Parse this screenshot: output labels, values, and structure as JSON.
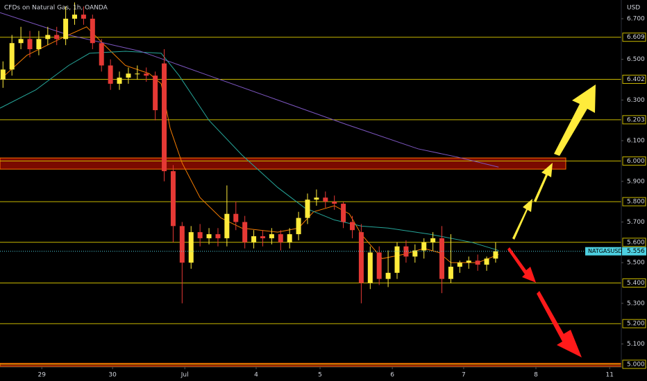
{
  "chart_data": {
    "type": "candlestick",
    "title": "CFDs on Natural Gas, 1h, OANDA",
    "currency": "USD",
    "symbol": "NATGASUSD",
    "last_price": 5.556,
    "up_color": "#ffeb3b",
    "down_color": "#e53935",
    "xlim": [
      0,
      208.1
    ],
    "ylim": [
      4.986,
      6.792
    ],
    "xticks": [
      {
        "value": 14,
        "label": "29"
      },
      {
        "value": 37.7,
        "label": "30"
      },
      {
        "value": 61.9,
        "label": "Jul"
      },
      {
        "value": 85.8,
        "label": "4"
      },
      {
        "value": 107.2,
        "label": "5"
      },
      {
        "value": 131.4,
        "label": "6"
      },
      {
        "value": 155.3,
        "label": "7"
      },
      {
        "value": 179.5,
        "label": "8"
      },
      {
        "value": 204.2,
        "label": "11"
      }
    ],
    "yticks": [
      {
        "value": 6.7,
        "label": "6.700"
      },
      {
        "value": 6.5,
        "label": "6.500"
      },
      {
        "value": 6.3,
        "label": "6.300"
      },
      {
        "value": 6.1,
        "label": "6.100"
      },
      {
        "value": 5.9,
        "label": "5.900"
      },
      {
        "value": 5.7,
        "label": "5.700"
      },
      {
        "value": 5.5,
        "label": "5.500"
      },
      {
        "value": 5.3,
        "label": "5.300"
      },
      {
        "value": 5.1,
        "label": "5.100"
      }
    ],
    "levels": [
      6.609,
      6.402,
      6.203,
      {
        "value": 6.0,
        "label": "6.000"
      },
      {
        "value": 5.8,
        "label": "5.800"
      },
      {
        "value": 5.6,
        "label": "5.600"
      },
      {
        "value": 5.4,
        "label": "5.400"
      },
      {
        "value": 5.2,
        "label": "5.200"
      },
      {
        "value": 5.0,
        "label": "5.000"
      }
    ],
    "level_color": "#c9b800",
    "zones": [
      {
        "low": 5.96,
        "high": 6.015,
        "x_end": 189.5,
        "color": "#7a0a00",
        "border": "#ff6d00"
      },
      {
        "low": 4.99,
        "high": 5.005,
        "x_end": 208.1,
        "color": "#7a0a00",
        "border": "#ff6d00"
      }
    ],
    "candles": {
      "x": [
        1,
        4,
        7,
        10,
        13,
        16,
        19,
        22,
        25,
        28,
        31,
        34,
        37,
        40,
        43,
        46,
        49,
        52,
        55,
        58,
        61,
        64,
        67,
        70,
        73,
        76,
        79,
        82,
        85,
        88,
        91,
        94,
        97,
        100,
        103,
        106,
        109,
        112,
        115,
        118,
        121,
        124,
        127,
        130,
        133,
        136,
        139,
        142,
        145,
        148,
        151,
        154,
        157,
        160,
        163,
        166
      ],
      "open": [
        6.4,
        6.45,
        6.58,
        6.6,
        6.55,
        6.6,
        6.62,
        6.6,
        6.7,
        6.72,
        6.7,
        6.58,
        6.47,
        6.38,
        6.41,
        6.43,
        6.43,
        6.42,
        6.48,
        5.95,
        5.68,
        5.5,
        5.65,
        5.62,
        5.64,
        5.62,
        5.74,
        5.7,
        5.6,
        5.63,
        5.62,
        5.64,
        5.6,
        5.64,
        5.72,
        5.81,
        5.82,
        5.8,
        5.79,
        5.7,
        5.65,
        5.4,
        5.55,
        5.42,
        5.45,
        5.58,
        5.53,
        5.56,
        5.6,
        5.62,
        5.42,
        5.48,
        5.5,
        5.51,
        5.49,
        5.52
      ],
      "high": [
        6.49,
        6.62,
        6.66,
        6.64,
        6.64,
        6.66,
        6.66,
        6.76,
        6.78,
        6.76,
        6.72,
        6.6,
        6.5,
        6.44,
        6.46,
        6.47,
        6.46,
        6.44,
        6.55,
        5.98,
        5.7,
        5.68,
        5.69,
        5.67,
        5.67,
        5.88,
        5.8,
        5.73,
        5.66,
        5.66,
        5.67,
        5.66,
        5.67,
        5.75,
        5.84,
        5.86,
        5.85,
        5.83,
        5.8,
        5.73,
        5.69,
        5.58,
        5.58,
        5.56,
        5.6,
        5.61,
        5.59,
        5.62,
        5.65,
        5.68,
        5.64,
        5.51,
        5.53,
        5.54,
        5.53,
        5.6
      ],
      "low": [
        6.36,
        6.42,
        6.55,
        6.51,
        6.52,
        6.57,
        6.57,
        6.57,
        6.67,
        6.67,
        6.55,
        6.44,
        6.35,
        6.35,
        6.38,
        6.4,
        6.39,
        6.2,
        5.9,
        5.6,
        5.3,
        5.47,
        5.58,
        5.59,
        5.58,
        5.58,
        5.66,
        5.57,
        5.57,
        5.58,
        5.59,
        5.56,
        5.57,
        5.61,
        5.69,
        5.78,
        5.77,
        5.76,
        5.67,
        5.62,
        5.3,
        5.37,
        5.39,
        5.38,
        5.42,
        5.5,
        5.5,
        5.52,
        5.56,
        5.35,
        5.4,
        5.45,
        5.47,
        5.46,
        5.46,
        5.5
      ],
      "close": [
        6.45,
        6.58,
        6.6,
        6.55,
        6.6,
        6.62,
        6.6,
        6.7,
        6.72,
        6.7,
        6.58,
        6.47,
        6.38,
        6.41,
        6.43,
        6.43,
        6.42,
        6.25,
        5.95,
        5.68,
        5.5,
        5.65,
        5.62,
        5.64,
        5.62,
        5.74,
        5.7,
        5.6,
        5.63,
        5.62,
        5.64,
        5.6,
        5.64,
        5.72,
        5.81,
        5.82,
        5.8,
        5.79,
        5.7,
        5.66,
        5.4,
        5.55,
        5.42,
        5.45,
        5.58,
        5.53,
        5.56,
        5.6,
        5.62,
        5.42,
        5.48,
        5.5,
        5.51,
        5.49,
        5.52,
        5.556
      ]
    },
    "series": [
      {
        "color": "#f57c00",
        "x": [
          0,
          9,
          20,
          29,
          35,
          42,
          50,
          54,
          57,
          61,
          67,
          74,
          81,
          93,
          100,
          105,
          112,
          117,
          121,
          128,
          135,
          142,
          147,
          151,
          160,
          167
        ],
        "values": [
          6.4,
          6.52,
          6.6,
          6.66,
          6.57,
          6.47,
          6.43,
          6.38,
          6.16,
          5.99,
          5.82,
          5.72,
          5.67,
          5.65,
          5.67,
          5.75,
          5.78,
          5.74,
          5.64,
          5.52,
          5.54,
          5.57,
          5.55,
          5.5,
          5.5,
          5.54
        ]
      },
      {
        "color": "#26a69a",
        "x": [
          0,
          12,
          23,
          30,
          42,
          54,
          60,
          70,
          81,
          93,
          102,
          112,
          121,
          130,
          144,
          158,
          167
        ],
        "values": [
          6.26,
          6.35,
          6.47,
          6.53,
          6.54,
          6.53,
          6.42,
          6.2,
          6.03,
          5.87,
          5.77,
          5.71,
          5.68,
          5.67,
          5.64,
          5.6,
          5.56
        ]
      },
      {
        "color": "#7e57c2",
        "x": [
          0,
          23,
          47,
          70,
          93,
          116,
          140,
          153,
          167
        ],
        "values": [
          6.73,
          6.62,
          6.54,
          6.42,
          6.3,
          6.18,
          6.06,
          6.02,
          5.97
        ]
      }
    ]
  }
}
